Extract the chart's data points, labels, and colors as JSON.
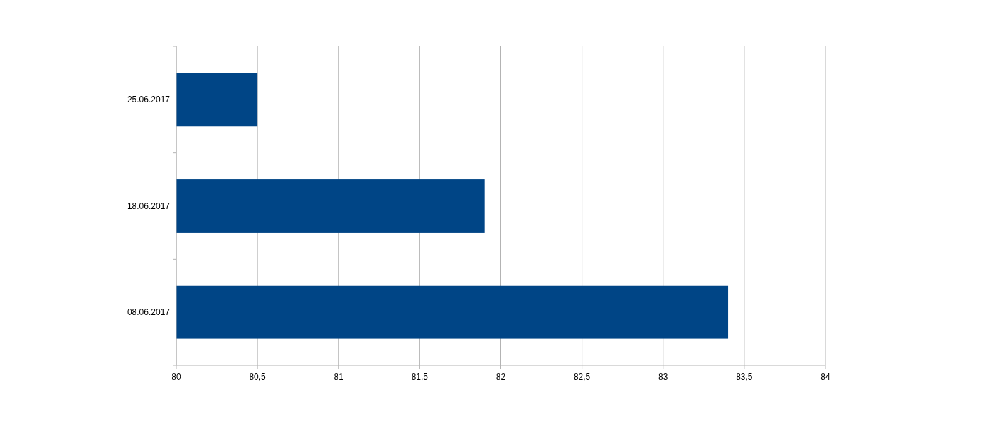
{
  "chart_data": {
    "type": "bar",
    "orientation": "horizontal",
    "categories": [
      "25.06.2017",
      "18.06.2017",
      "08.06.2017"
    ],
    "values": [
      80.5,
      81.9,
      83.4
    ],
    "color": "#004586",
    "xlim": [
      80,
      84
    ],
    "xticks": [
      80,
      {
        "value": 80.5,
        "label": "80,5"
      },
      81,
      {
        "value": 81.5,
        "label": "81,5"
      },
      82,
      {
        "value": 82.5,
        "label": "82,5"
      },
      83,
      {
        "value": 83.5,
        "label": "83,5"
      },
      84
    ],
    "grid": "x"
  }
}
